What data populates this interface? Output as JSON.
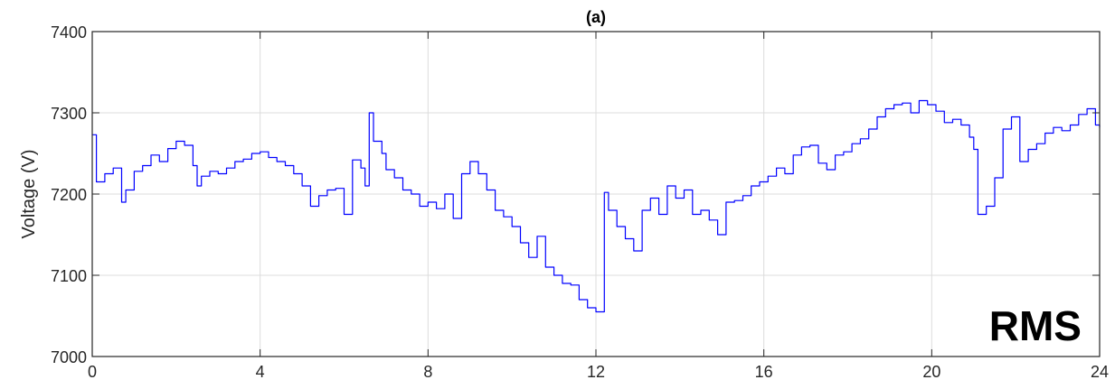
{
  "chart_data": {
    "type": "line",
    "title": "(a)",
    "xlabel": "",
    "ylabel": "Voltage (V)",
    "annotation": "RMS",
    "xlim": [
      0,
      24
    ],
    "ylim": [
      7000,
      7400
    ],
    "xticks": [
      0,
      4,
      8,
      12,
      16,
      20,
      24
    ],
    "yticks": [
      7000,
      7100,
      7200,
      7300,
      7400
    ],
    "grid": true,
    "line_color": "#0000ff",
    "series": [
      {
        "x": [
          0,
          0.1,
          0.3,
          0.5,
          0.7,
          0.8,
          1.0,
          1.2,
          1.4,
          1.6,
          1.8,
          2.0,
          2.2,
          2.4,
          2.5,
          2.6,
          2.8,
          3.0,
          3.2,
          3.4,
          3.6,
          3.8,
          4.0,
          4.2,
          4.4,
          4.6,
          4.8,
          5.0,
          5.2,
          5.4,
          5.6,
          5.8,
          6.0,
          6.2,
          6.4,
          6.5,
          6.6,
          6.7,
          6.9,
          7.0,
          7.2,
          7.4,
          7.6,
          7.8,
          8.0,
          8.2,
          8.4,
          8.6,
          8.8,
          9.0,
          9.2,
          9.4,
          9.6,
          9.8,
          10.0,
          10.2,
          10.4,
          10.6,
          10.8,
          11.0,
          11.2,
          11.4,
          11.6,
          11.8,
          12.0,
          12.1,
          12.2,
          12.3,
          12.5,
          12.7,
          12.9,
          13.1,
          13.3,
          13.5,
          13.7,
          13.9,
          14.1,
          14.3,
          14.5,
          14.7,
          14.9,
          15.1,
          15.3,
          15.5,
          15.7,
          15.9,
          16.1,
          16.3,
          16.5,
          16.7,
          16.9,
          17.1,
          17.3,
          17.5,
          17.7,
          17.9,
          18.1,
          18.3,
          18.5,
          18.7,
          18.9,
          19.1,
          19.3,
          19.5,
          19.7,
          19.9,
          20.1,
          20.3,
          20.5,
          20.7,
          20.9,
          21.0,
          21.1,
          21.3,
          21.5,
          21.7,
          21.9,
          22.1,
          22.3,
          22.5,
          22.7,
          22.9,
          23.1,
          23.3,
          23.5,
          23.7,
          23.9,
          24.0
        ],
        "y": [
          7273,
          7215,
          7225,
          7232,
          7190,
          7205,
          7228,
          7235,
          7248,
          7240,
          7256,
          7265,
          7260,
          7235,
          7210,
          7222,
          7228,
          7225,
          7232,
          7240,
          7243,
          7250,
          7252,
          7245,
          7240,
          7235,
          7225,
          7210,
          7185,
          7198,
          7205,
          7207,
          7175,
          7242,
          7232,
          7210,
          7300,
          7265,
          7250,
          7230,
          7220,
          7205,
          7200,
          7185,
          7190,
          7182,
          7200,
          7170,
          7225,
          7240,
          7225,
          7205,
          7180,
          7172,
          7160,
          7140,
          7122,
          7148,
          7110,
          7100,
          7090,
          7088,
          7070,
          7060,
          7055,
          7055,
          7202,
          7180,
          7160,
          7145,
          7130,
          7180,
          7195,
          7175,
          7210,
          7195,
          7205,
          7175,
          7180,
          7168,
          7150,
          7190,
          7192,
          7198,
          7210,
          7215,
          7222,
          7232,
          7225,
          7248,
          7258,
          7260,
          7238,
          7230,
          7248,
          7252,
          7262,
          7268,
          7280,
          7295,
          7305,
          7310,
          7312,
          7300,
          7315,
          7310,
          7302,
          7288,
          7292,
          7285,
          7270,
          7255,
          7175,
          7185,
          7220,
          7280,
          7295,
          7240,
          7255,
          7262,
          7275,
          7282,
          7278,
          7285,
          7298,
          7305,
          7285,
          7282
        ]
      }
    ]
  }
}
